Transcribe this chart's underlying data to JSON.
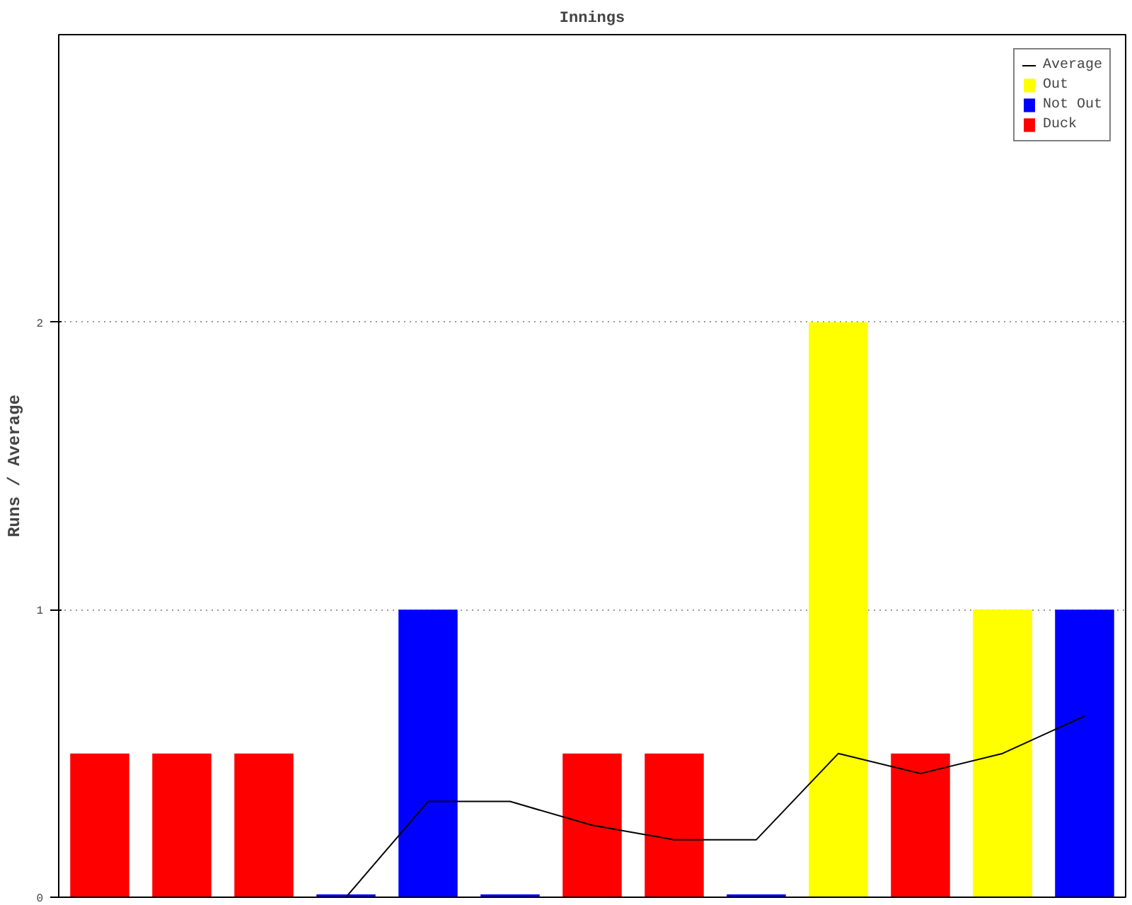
{
  "chart_data": {
    "type": "bar",
    "title": "Innings",
    "ylabel": "Runs / Average",
    "categories": [
      null,
      null,
      null,
      null,
      null,
      null,
      null,
      null,
      null,
      null,
      null,
      null,
      null
    ],
    "series": [
      {
        "name": "Average",
        "type": "line",
        "color": "#000000",
        "values": [
          null,
          null,
          null,
          0,
          0.333,
          0.333,
          0.25,
          0.2,
          0.2,
          0.5,
          0.43,
          0.5,
          0.63
        ]
      },
      {
        "name": "Out",
        "color": "#ffff00",
        "values": [
          null,
          null,
          null,
          null,
          null,
          null,
          null,
          null,
          null,
          2,
          null,
          1,
          null
        ]
      },
      {
        "name": "Not Out",
        "color": "#0000ff",
        "values": [
          null,
          null,
          null,
          0.01,
          1,
          0.01,
          null,
          null,
          0.01,
          null,
          null,
          null,
          1
        ]
      },
      {
        "name": "Duck",
        "color": "#ff0000",
        "values": [
          0.5,
          0.5,
          0.5,
          null,
          null,
          null,
          0.5,
          0.5,
          null,
          null,
          0.5,
          null,
          null
        ]
      }
    ],
    "ylim": [
      0,
      3
    ],
    "yticks": [
      0,
      1,
      2
    ],
    "grid": "y",
    "legend": "top right",
    "marker": "none",
    "line_style": "solid"
  }
}
